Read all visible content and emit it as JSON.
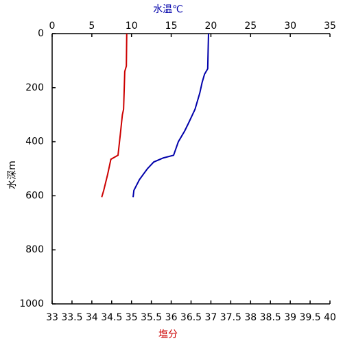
{
  "chart_data": {
    "type": "line",
    "top_axis_label": "水温℃",
    "bottom_axis_label": "塩分",
    "y_axis_label": "水深m",
    "xlim": [
      33,
      40
    ],
    "xticks": [
      33,
      33.5,
      34,
      34.5,
      35,
      35.5,
      36,
      36.5,
      37,
      37.5,
      38,
      38.5,
      39,
      39.5,
      40
    ],
    "x2lim": [
      0,
      35
    ],
    "x2ticks": [
      0,
      5,
      10,
      15,
      20,
      25,
      30,
      35
    ],
    "ylim": [
      0,
      1000
    ],
    "yticks": [
      0,
      200,
      400,
      600,
      800,
      1000
    ],
    "y_inverted": true,
    "series": [
      {
        "color": "#cc0000",
        "axis": "x",
        "depths": [
          0,
          120,
          140,
          280,
          300,
          370,
          450,
          465,
          520,
          580,
          605
        ],
        "values": [
          34.88,
          34.87,
          34.83,
          34.8,
          34.77,
          34.72,
          34.66,
          34.48,
          34.4,
          34.3,
          34.25
        ]
      },
      {
        "color": "#0000aa",
        "axis": "x2",
        "depths": [
          0,
          130,
          150,
          180,
          220,
          280,
          330,
          360,
          400,
          450,
          460,
          475,
          500,
          540,
          580,
          605
        ],
        "values": [
          19.7,
          19.6,
          19.2,
          18.9,
          18.6,
          18.0,
          17.2,
          16.7,
          15.9,
          15.3,
          14.0,
          12.8,
          12.0,
          11.0,
          10.3,
          10.2
        ]
      }
    ]
  }
}
